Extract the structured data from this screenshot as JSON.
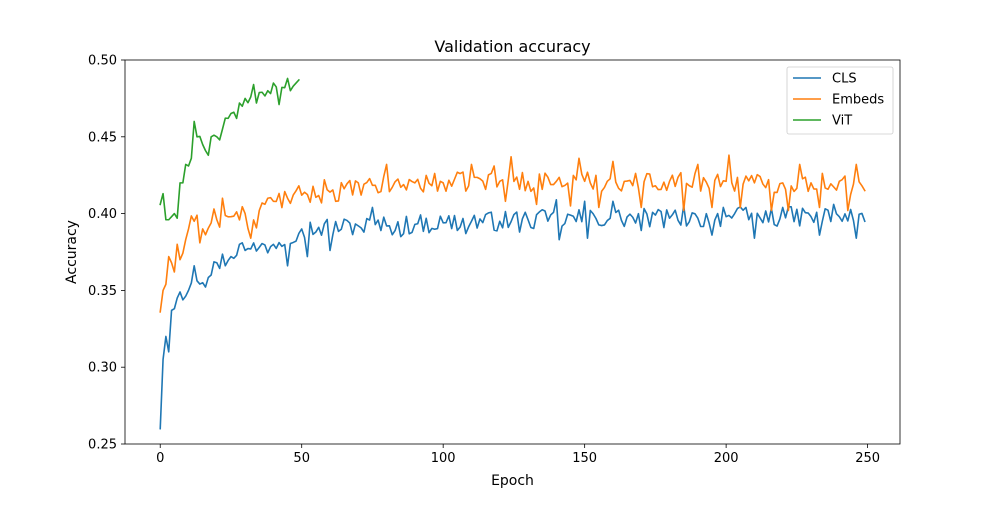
{
  "chart_data": {
    "type": "line",
    "title": "Validation accuracy",
    "xlabel": "Epoch",
    "ylabel": "Accuracy",
    "xlim": [
      -12.45,
      261.45
    ],
    "ylim": [
      0.25,
      0.5
    ],
    "xticks": [
      0,
      50,
      100,
      150,
      200,
      250
    ],
    "yticks": [
      0.25,
      0.3,
      0.35,
      0.4,
      0.45,
      0.5
    ],
    "ytick_labels": [
      "0.25",
      "0.30",
      "0.35",
      "0.40",
      "0.45",
      "0.50"
    ],
    "grid": false,
    "legend_position": "top-right",
    "series": [
      {
        "name": "CLS",
        "color": "#1f77b4",
        "anchors": [
          [
            0,
            0.26
          ],
          [
            1,
            0.305
          ],
          [
            2,
            0.32
          ],
          [
            3,
            0.31
          ],
          [
            4,
            0.337
          ],
          [
            6,
            0.345
          ],
          [
            7,
            0.349
          ],
          [
            10,
            0.35
          ],
          [
            12,
            0.366
          ],
          [
            15,
            0.355
          ],
          [
            18,
            0.36
          ],
          [
            20,
            0.368
          ],
          [
            25,
            0.372
          ],
          [
            28,
            0.38
          ],
          [
            30,
            0.376
          ],
          [
            35,
            0.378
          ],
          [
            40,
            0.38
          ],
          [
            45,
            0.386
          ],
          [
            50,
            0.39
          ],
          [
            60,
            0.391
          ],
          [
            70,
            0.392
          ],
          [
            80,
            0.392
          ],
          [
            90,
            0.393
          ],
          [
            100,
            0.394
          ],
          [
            110,
            0.395
          ],
          [
            120,
            0.395
          ],
          [
            130,
            0.396
          ],
          [
            140,
            0.396
          ],
          [
            150,
            0.397
          ],
          [
            160,
            0.397
          ],
          [
            170,
            0.397
          ],
          [
            180,
            0.397
          ],
          [
            190,
            0.397
          ],
          [
            200,
            0.398
          ],
          [
            210,
            0.398
          ],
          [
            220,
            0.398
          ],
          [
            230,
            0.398
          ],
          [
            240,
            0.398
          ],
          [
            249,
            0.397
          ]
        ],
        "noise": 0.0065,
        "specials": [
          [
            140,
            0.409
          ],
          [
            141,
            0.383
          ],
          [
            150,
            0.408
          ],
          [
            151,
            0.384
          ],
          [
            160,
            0.408
          ],
          [
            170,
            0.389
          ],
          [
            185,
            0.405
          ],
          [
            195,
            0.386
          ],
          [
            199,
            0.404
          ],
          [
            210,
            0.384
          ],
          [
            220,
            0.404
          ],
          [
            233,
            0.386
          ],
          [
            238,
            0.406
          ],
          [
            246,
            0.384
          ],
          [
            249,
            0.395
          ],
          [
            32,
            0.377
          ],
          [
            45,
            0.366
          ],
          [
            52,
            0.372
          ],
          [
            55,
            0.388
          ],
          [
            60,
            0.376
          ],
          [
            75,
            0.404
          ],
          [
            85,
            0.385
          ],
          [
            108,
            0.387
          ],
          [
            126,
            0.401
          ],
          [
            127,
            0.388
          ]
        ]
      },
      {
        "name": "Embeds",
        "color": "#ff7f0e",
        "anchors": [
          [
            0,
            0.336
          ],
          [
            1,
            0.35
          ],
          [
            2,
            0.354
          ],
          [
            3,
            0.372
          ],
          [
            5,
            0.362
          ],
          [
            6,
            0.38
          ],
          [
            7,
            0.37
          ],
          [
            9,
            0.383
          ],
          [
            10,
            0.39
          ],
          [
            12,
            0.395
          ],
          [
            15,
            0.39
          ],
          [
            18,
            0.394
          ],
          [
            20,
            0.396
          ],
          [
            25,
            0.398
          ],
          [
            30,
            0.4
          ],
          [
            32,
            0.385
          ],
          [
            35,
            0.402
          ],
          [
            40,
            0.408
          ],
          [
            45,
            0.41
          ],
          [
            50,
            0.412
          ],
          [
            60,
            0.414
          ],
          [
            70,
            0.416
          ],
          [
            80,
            0.418
          ],
          [
            90,
            0.42
          ],
          [
            100,
            0.42
          ],
          [
            110,
            0.421
          ],
          [
            120,
            0.421
          ],
          [
            130,
            0.421
          ],
          [
            140,
            0.421
          ],
          [
            150,
            0.421
          ],
          [
            160,
            0.421
          ],
          [
            170,
            0.421
          ],
          [
            180,
            0.421
          ],
          [
            190,
            0.421
          ],
          [
            200,
            0.421
          ],
          [
            210,
            0.42
          ],
          [
            220,
            0.42
          ],
          [
            230,
            0.42
          ],
          [
            240,
            0.421
          ],
          [
            249,
            0.415
          ]
        ],
        "noise": 0.0065,
        "specials": [
          [
            4,
            0.368
          ],
          [
            14,
            0.381
          ],
          [
            19,
            0.403
          ],
          [
            22,
            0.41
          ],
          [
            32,
            0.384
          ],
          [
            38,
            0.41
          ],
          [
            58,
            0.422
          ],
          [
            62,
            0.408
          ],
          [
            70,
            0.42
          ],
          [
            80,
            0.432
          ],
          [
            110,
            0.432
          ],
          [
            118,
            0.431
          ],
          [
            122,
            0.408
          ],
          [
            124,
            0.437
          ],
          [
            133,
            0.406
          ],
          [
            145,
            0.405
          ],
          [
            148,
            0.436
          ],
          [
            155,
            0.404
          ],
          [
            160,
            0.434
          ],
          [
            170,
            0.404
          ],
          [
            185,
            0.402
          ],
          [
            190,
            0.432
          ],
          [
            195,
            0.404
          ],
          [
            201,
            0.438
          ],
          [
            205,
            0.404
          ],
          [
            216,
            0.402
          ],
          [
            222,
            0.402
          ],
          [
            226,
            0.432
          ],
          [
            233,
            0.404
          ],
          [
            243,
            0.402
          ],
          [
            246,
            0.432
          ],
          [
            249,
            0.415
          ]
        ]
      },
      {
        "name": "ViT",
        "color": "#2ca02c",
        "anchors": [
          [
            0,
            0.406
          ],
          [
            1,
            0.413
          ],
          [
            2,
            0.396
          ],
          [
            4,
            0.398
          ],
          [
            5,
            0.4
          ],
          [
            6,
            0.397
          ],
          [
            7,
            0.42
          ],
          [
            8,
            0.42
          ],
          [
            9,
            0.432
          ],
          [
            10,
            0.431
          ],
          [
            11,
            0.436
          ],
          [
            12,
            0.46
          ],
          [
            13,
            0.45
          ],
          [
            15,
            0.445
          ],
          [
            16,
            0.441
          ],
          [
            17,
            0.438
          ],
          [
            18,
            0.45
          ],
          [
            20,
            0.45
          ],
          [
            22,
            0.455
          ],
          [
            24,
            0.462
          ],
          [
            26,
            0.466
          ],
          [
            28,
            0.472
          ],
          [
            30,
            0.475
          ],
          [
            32,
            0.476
          ],
          [
            34,
            0.478
          ],
          [
            36,
            0.479
          ],
          [
            38,
            0.48
          ],
          [
            40,
            0.481
          ],
          [
            42,
            0.481
          ],
          [
            44,
            0.482
          ],
          [
            46,
            0.484
          ],
          [
            48,
            0.485
          ],
          [
            49,
            0.487
          ]
        ],
        "noise": 0.004,
        "specials": [
          [
            21,
            0.448
          ],
          [
            27,
            0.462
          ],
          [
            33,
            0.484
          ],
          [
            34,
            0.472
          ],
          [
            40,
            0.485
          ],
          [
            42,
            0.471
          ],
          [
            45,
            0.488
          ],
          [
            46,
            0.48
          ]
        ]
      }
    ]
  }
}
